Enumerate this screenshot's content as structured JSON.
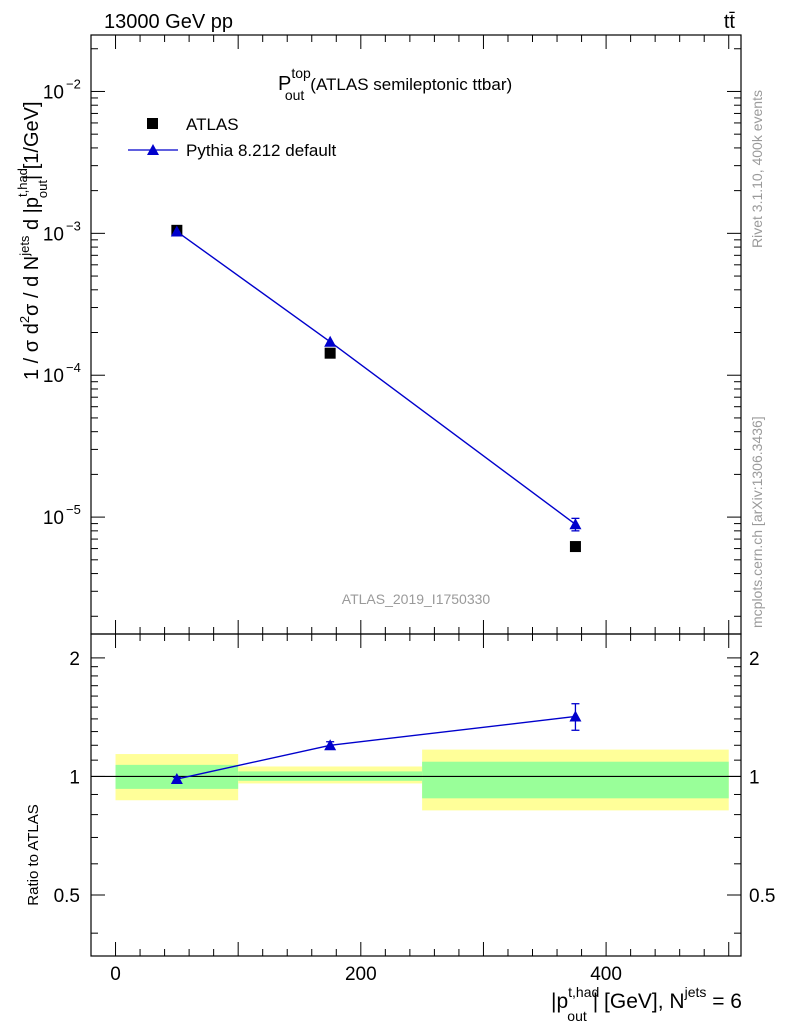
{
  "header": {
    "energy_label": "13000 GeV pp",
    "process_label": "tt̄",
    "rivet_label": "Rivet 3.1.10,  400k events",
    "mcplots_label": "mcplots.cern.ch [arXiv:1306.3436]",
    "analysis_id": "ATLAS_2019_I1750330"
  },
  "chart_data": {
    "type": "line",
    "title": {
      "main": "P",
      "sup": "top",
      "sub": "out",
      "rest": "(ATLAS semileptonic ttbar)"
    },
    "xlabel": {
      "prefix": "|p",
      "sup": "t,had",
      "sub": "out",
      "mid": "| [GeV], N",
      "sup2": "jets",
      "suffix": " = 6"
    },
    "ylabel": {
      "p1": "1 / σ d",
      "sup1": "2",
      "p2": "σ / d N",
      "sup2": "jets",
      "p3": " d |p",
      "sup3": "t,had",
      "sub3": "out",
      "p4": "| [1/GeV]"
    },
    "xlim": [
      -20,
      510
    ],
    "ylim_main": [
      1.5e-06,
      0.025
    ],
    "ylim_ratio": [
      0.35,
      2.3
    ],
    "x_ticks": [
      {
        "value": 0,
        "label": "0"
      },
      {
        "value": 200,
        "label": "200"
      },
      {
        "value": 400,
        "label": "400"
      }
    ],
    "y_ticks_main": [
      {
        "value": 1e-05,
        "base": "10",
        "exp": "−5"
      },
      {
        "value": 0.0001,
        "base": "10",
        "exp": "−4"
      },
      {
        "value": 0.001,
        "base": "10",
        "exp": "−3"
      },
      {
        "value": 0.01,
        "base": "10",
        "exp": "−2"
      }
    ],
    "ratio_ylabel": "Ratio to ATLAS",
    "y_ticks_ratio": [
      {
        "value": 0.5,
        "label": "0.5"
      },
      {
        "value": 1,
        "label": "1"
      },
      {
        "value": 2,
        "label": "2"
      }
    ],
    "bins": [
      {
        "lo": 0,
        "hi": 100,
        "center": 50
      },
      {
        "lo": 100,
        "hi": 250,
        "center": 175
      },
      {
        "lo": 250,
        "hi": 500,
        "center": 375
      }
    ],
    "series": [
      {
        "name": "ATLAS",
        "marker": "square",
        "color": "#000000",
        "values": [
          0.00105,
          0.000143,
          6.2e-06
        ]
      },
      {
        "name": "Pythia 8.212 default",
        "marker": "triangle",
        "color": "#0000cc",
        "values": [
          0.00103,
          0.000172,
          8.9e-06
        ],
        "errors": [
          1e-05,
          2e-06,
          9e-07
        ]
      }
    ],
    "ratio": {
      "values": [
        0.985,
        1.2,
        1.42
      ],
      "errors": [
        0.01,
        0.025,
        0.11
      ]
    },
    "bands": {
      "stat_color": "#99ff99",
      "syst_color": "#ffff99",
      "stat": [
        [
          0.93,
          1.07
        ],
        [
          0.975,
          1.03
        ],
        [
          0.88,
          1.09
        ]
      ],
      "total": [
        [
          0.87,
          1.14
        ],
        [
          0.96,
          1.06
        ],
        [
          0.82,
          1.17
        ]
      ]
    },
    "legend": {
      "position": "top-left"
    }
  }
}
